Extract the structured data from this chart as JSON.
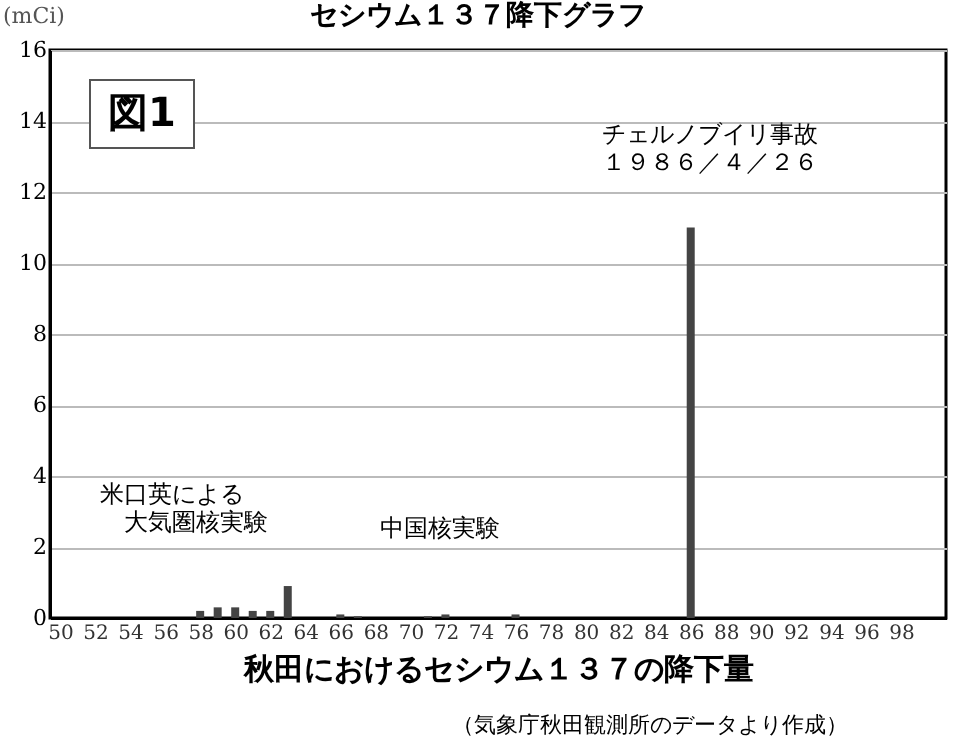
{
  "chart_data": {
    "type": "bar",
    "title": "セシウム１３７降下グラフ",
    "xlabel": "秋田におけるセシウム１３７の降下量",
    "ylabel": "(mCi)",
    "x": [
      58,
      59,
      60,
      61,
      62,
      63,
      66,
      67,
      71,
      72,
      76,
      86
    ],
    "values": [
      0.2,
      0.3,
      0.3,
      0.2,
      0.2,
      0.9,
      0.1,
      0.05,
      0.05,
      0.1,
      0.1,
      11
    ],
    "color": "#444444",
    "xlim": [
      50,
      100
    ],
    "xticks": [
      50,
      52,
      54,
      56,
      58,
      60,
      62,
      64,
      66,
      68,
      70,
      72,
      74,
      76,
      78,
      80,
      82,
      84,
      86,
      88,
      90,
      92,
      94,
      96,
      98
    ],
    "ylim": [
      0,
      16
    ],
    "yticks": [
      0,
      2,
      4,
      6,
      8,
      10,
      12,
      14,
      16
    ],
    "grid": "y",
    "annotations": [
      "図1",
      "チェルノブイリ事故",
      "１９８６／４／２６",
      "米口英による",
      "大気圏核実験",
      "中国核実験",
      "（気象庁秋田観測所のデータより作成）"
    ]
  }
}
